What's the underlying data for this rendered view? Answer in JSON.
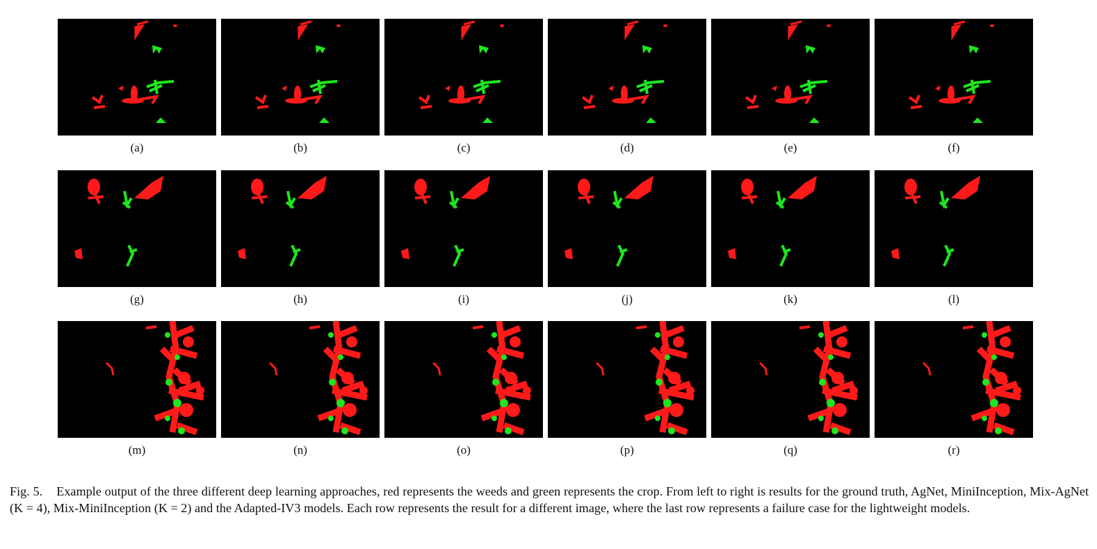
{
  "figure": {
    "colors": {
      "weed": "#ff1a1a",
      "crop": "#1ee61e",
      "background": "#000000"
    },
    "rows": [
      {
        "labels": [
          "(a)",
          "(b)",
          "(c)",
          "(d)",
          "(e)",
          "(f)"
        ]
      },
      {
        "labels": [
          "(g)",
          "(h)",
          "(i)",
          "(j)",
          "(k)",
          "(l)"
        ]
      },
      {
        "labels": [
          "(m)",
          "(n)",
          "(o)",
          "(p)",
          "(q)",
          "(r)"
        ]
      }
    ],
    "caption": {
      "number": "Fig. 5.",
      "text": "Example output of the three different deep learning approaches, red represents the weeds and green represents the crop. From left to right is results for the ground truth, AgNet, MiniInception, Mix-AgNet (K = 4), Mix-MiniInception (K = 2) and the Adapted-IV3 models. Each row represents the result for a different image, where the last row represents a failure case for the lightweight models."
    }
  }
}
